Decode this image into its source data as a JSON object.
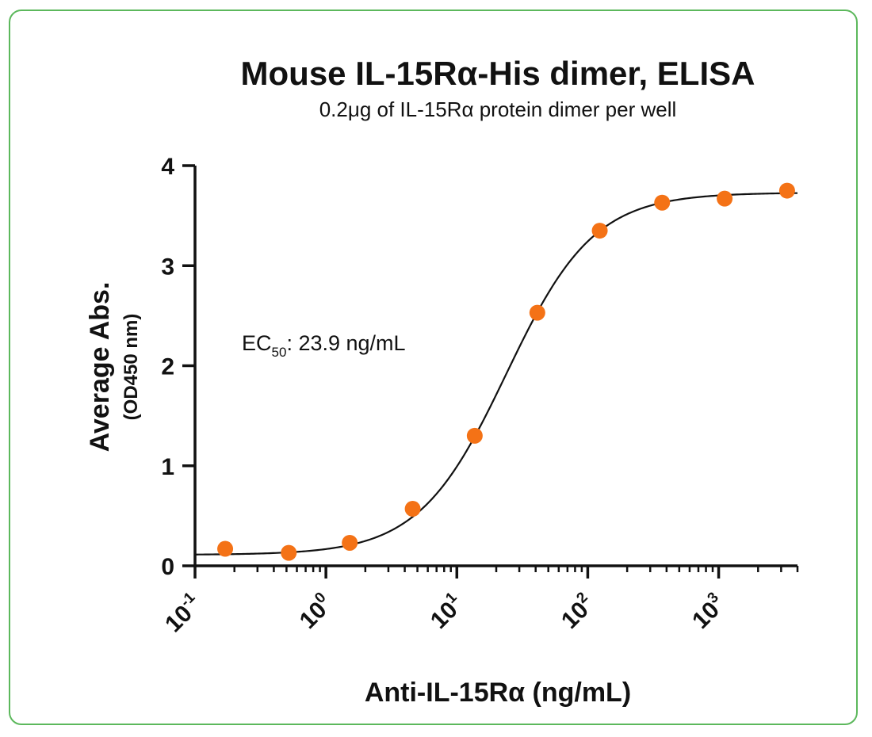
{
  "chart_data": {
    "type": "scatter",
    "title": "Mouse IL-15Rα-His dimer, ELISA",
    "subtitle": "0.2μg of IL-15Rα protein dimer per well",
    "xlabel": "Anti-IL-15Rα (ng/mL)",
    "ylabel": "Average Abs.",
    "ylabel_sub": "(OD450 nm)",
    "x_scale": "log",
    "xlim": [
      0.1,
      4000
    ],
    "ylim": [
      0,
      4
    ],
    "grid": false,
    "x_ticks": [
      {
        "value": 0.1,
        "base": "10",
        "exp": "-1"
      },
      {
        "value": 1,
        "base": "10",
        "exp": "0"
      },
      {
        "value": 10,
        "base": "10",
        "exp": "1"
      },
      {
        "value": 100,
        "base": "10",
        "exp": "2"
      },
      {
        "value": 1000,
        "base": "10",
        "exp": "3"
      }
    ],
    "y_ticks": [
      "0",
      "1",
      "2",
      "3",
      "4"
    ],
    "annotation": {
      "prefix": "EC",
      "sub": "50",
      "suffix": ": 23.9 ng/mL"
    },
    "fit": {
      "model": "4PL",
      "bottom": 0.11,
      "top": 3.73,
      "ec50": 23.9,
      "hill": 1.3
    },
    "series": [
      {
        "x": [
          0.17,
          0.52,
          1.52,
          4.6,
          13.7,
          41.2,
          123.5,
          370,
          1111,
          3333
        ],
        "y": [
          0.17,
          0.13,
          0.23,
          0.57,
          1.3,
          2.53,
          3.35,
          3.63,
          3.67,
          3.75
        ],
        "color": "#f47216"
      }
    ],
    "curve_color": "#111111"
  }
}
